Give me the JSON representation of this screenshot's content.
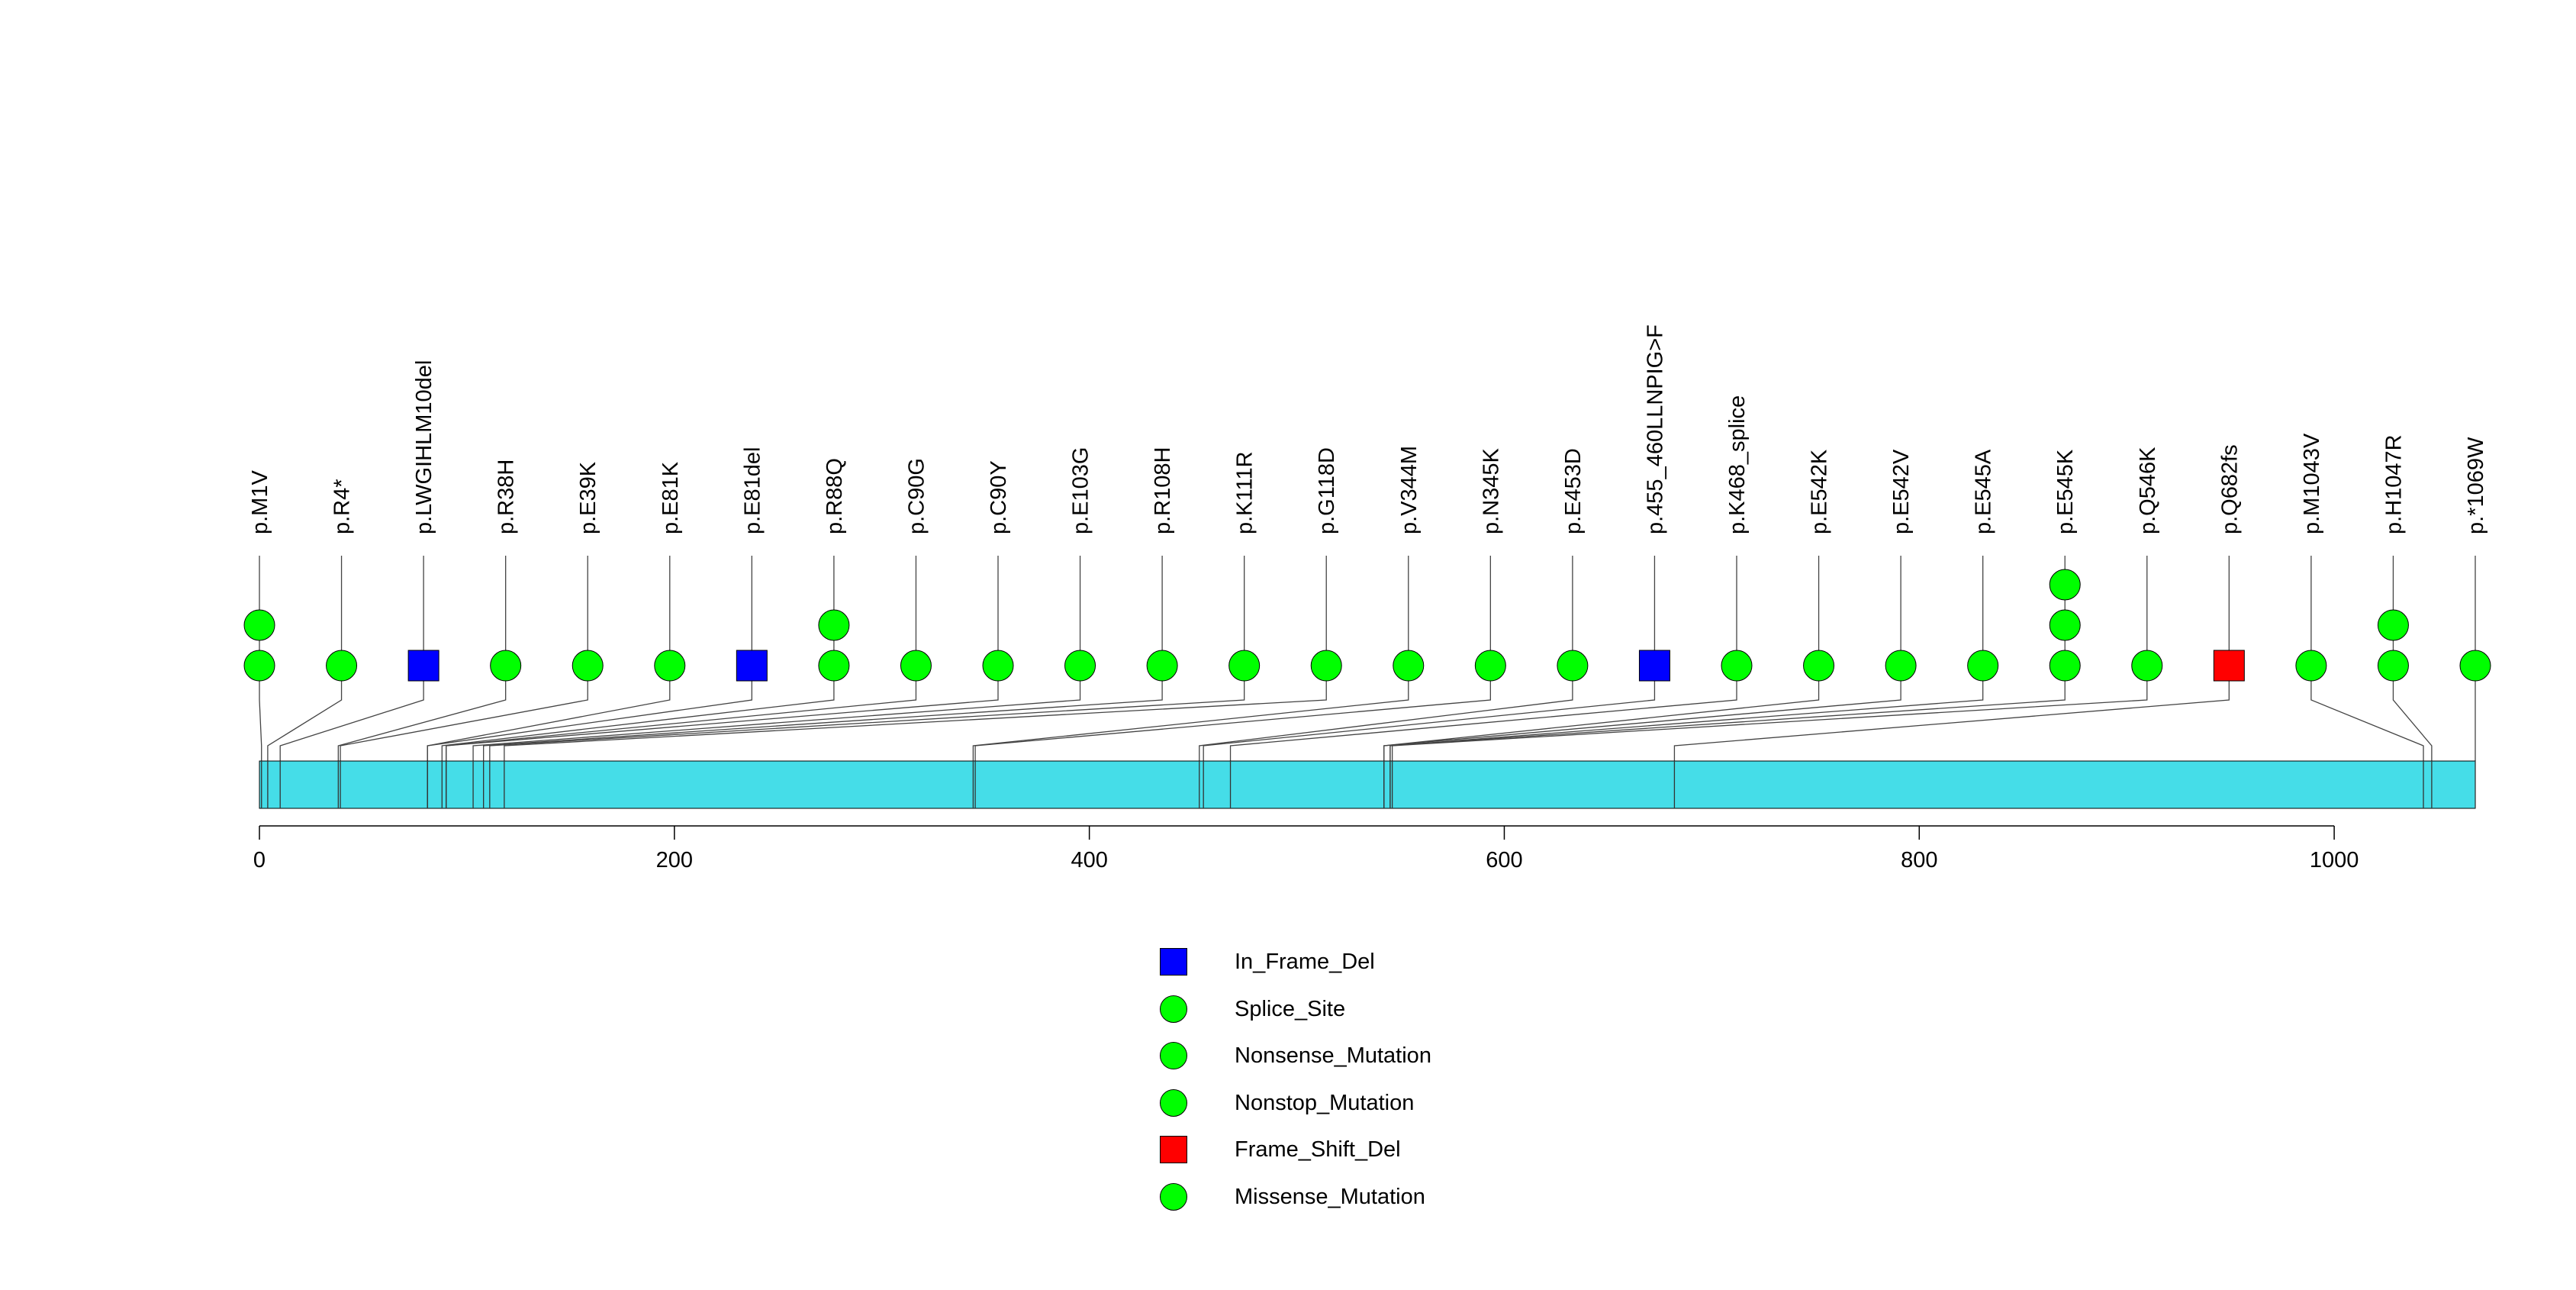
{
  "chart_data": {
    "type": "lollipop",
    "xlim": [
      0,
      1068
    ],
    "x_ticks": [
      0,
      200,
      400,
      600,
      800,
      1000
    ],
    "protein_length": 1068,
    "bar_color": "#45DDE8",
    "mutations": [
      {
        "label": "p.M1V",
        "position": 1,
        "count": 2,
        "type": "Missense_Mutation"
      },
      {
        "label": "p.R4*",
        "position": 4,
        "count": 1,
        "type": "Nonsense_Mutation"
      },
      {
        "label": "p.LWGIHLM10del",
        "position": 10,
        "count": 1,
        "type": "In_Frame_Del"
      },
      {
        "label": "p.R38H",
        "position": 38,
        "count": 1,
        "type": "Missense_Mutation"
      },
      {
        "label": "p.E39K",
        "position": 39,
        "count": 1,
        "type": "Missense_Mutation"
      },
      {
        "label": "p.E81K",
        "position": 81,
        "count": 1,
        "type": "Missense_Mutation"
      },
      {
        "label": "p.E81del",
        "position": 81,
        "count": 1,
        "type": "In_Frame_Del"
      },
      {
        "label": "p.R88Q",
        "position": 88,
        "count": 2,
        "type": "Missense_Mutation"
      },
      {
        "label": "p.C90G",
        "position": 90,
        "count": 1,
        "type": "Missense_Mutation"
      },
      {
        "label": "p.C90Y",
        "position": 90,
        "count": 1,
        "type": "Missense_Mutation"
      },
      {
        "label": "p.E103G",
        "position": 103,
        "count": 1,
        "type": "Missense_Mutation"
      },
      {
        "label": "p.R108H",
        "position": 108,
        "count": 1,
        "type": "Missense_Mutation"
      },
      {
        "label": "p.K111R",
        "position": 111,
        "count": 1,
        "type": "Missense_Mutation"
      },
      {
        "label": "p.G118D",
        "position": 118,
        "count": 1,
        "type": "Missense_Mutation"
      },
      {
        "label": "p.V344M",
        "position": 344,
        "count": 1,
        "type": "Missense_Mutation"
      },
      {
        "label": "p.N345K",
        "position": 345,
        "count": 1,
        "type": "Missense_Mutation"
      },
      {
        "label": "p.E453D",
        "position": 453,
        "count": 1,
        "type": "Missense_Mutation"
      },
      {
        "label": "p.455_460LLNPIG>F",
        "position": 455,
        "count": 1,
        "type": "In_Frame_Del"
      },
      {
        "label": "p.K468_splice",
        "position": 468,
        "count": 1,
        "type": "Splice_Site"
      },
      {
        "label": "p.E542K",
        "position": 542,
        "count": 1,
        "type": "Missense_Mutation"
      },
      {
        "label": "p.E542V",
        "position": 542,
        "count": 1,
        "type": "Missense_Mutation"
      },
      {
        "label": "p.E545A",
        "position": 545,
        "count": 1,
        "type": "Missense_Mutation"
      },
      {
        "label": "p.E545K",
        "position": 545,
        "count": 3,
        "type": "Missense_Mutation"
      },
      {
        "label": "p.Q546K",
        "position": 546,
        "count": 1,
        "type": "Missense_Mutation"
      },
      {
        "label": "p.Q682fs",
        "position": 682,
        "count": 1,
        "type": "Frame_Shift_Del"
      },
      {
        "label": "p.M1043V",
        "position": 1043,
        "count": 1,
        "type": "Missense_Mutation"
      },
      {
        "label": "p.H1047R",
        "position": 1047,
        "count": 2,
        "type": "Missense_Mutation"
      },
      {
        "label": "p.*1069W",
        "position": 1068,
        "count": 1,
        "type": "Nonstop_Mutation"
      }
    ],
    "legend": [
      {
        "name": "In_Frame_Del",
        "shape": "square",
        "color": "#0000FF"
      },
      {
        "name": "Splice_Site",
        "shape": "circle",
        "color": "#00FF00"
      },
      {
        "name": "Nonsense_Mutation",
        "shape": "circle",
        "color": "#00FF00"
      },
      {
        "name": "Nonstop_Mutation",
        "shape": "circle",
        "color": "#00FF00"
      },
      {
        "name": "Frame_Shift_Del",
        "shape": "square",
        "color": "#FF0000"
      },
      {
        "name": "Missense_Mutation",
        "shape": "circle",
        "color": "#00FF00"
      }
    ],
    "legend_placement": "bottom-center",
    "grid": false
  }
}
